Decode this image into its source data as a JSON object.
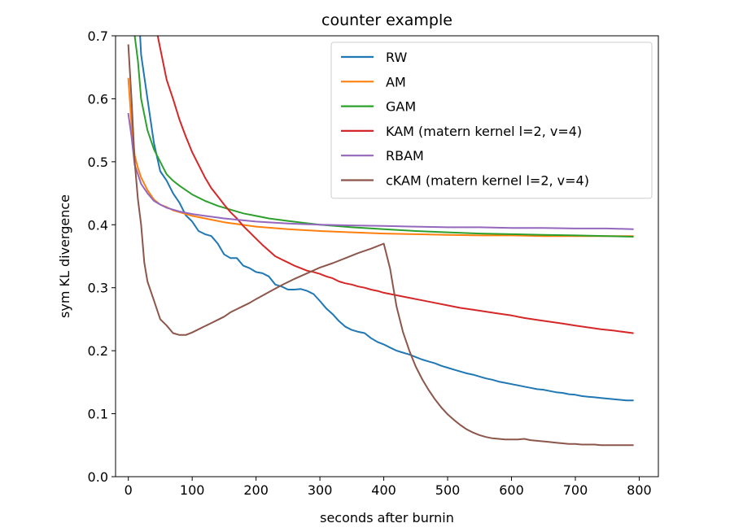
{
  "chart_data": {
    "type": "line",
    "title": "counter example",
    "xlabel": "seconds after burnin",
    "ylabel": "sym KL divergence",
    "xlim": [
      -20,
      830
    ],
    "ylim": [
      0.0,
      0.7
    ],
    "xticks": [
      0,
      100,
      200,
      300,
      400,
      500,
      600,
      700,
      800
    ],
    "yticks": [
      0.0,
      0.1,
      0.2,
      0.3,
      0.4,
      0.5,
      0.6,
      0.7
    ],
    "grid": false,
    "legend_position": "top-right",
    "series": [
      {
        "name": "RW",
        "color": "#1f77b4",
        "points": [
          [
            10,
            0.86
          ],
          [
            20,
            0.67
          ],
          [
            30,
            0.6
          ],
          [
            40,
            0.53
          ],
          [
            50,
            0.485
          ],
          [
            60,
            0.47
          ],
          [
            70,
            0.45
          ],
          [
            80,
            0.435
          ],
          [
            90,
            0.415
          ],
          [
            100,
            0.405
          ],
          [
            110,
            0.39
          ],
          [
            120,
            0.385
          ],
          [
            130,
            0.382
          ],
          [
            140,
            0.37
          ],
          [
            150,
            0.353
          ],
          [
            160,
            0.347
          ],
          [
            170,
            0.347
          ],
          [
            180,
            0.335
          ],
          [
            190,
            0.331
          ],
          [
            200,
            0.325
          ],
          [
            210,
            0.323
          ],
          [
            220,
            0.318
          ],
          [
            230,
            0.305
          ],
          [
            240,
            0.302
          ],
          [
            250,
            0.297
          ],
          [
            260,
            0.297
          ],
          [
            270,
            0.298
          ],
          [
            280,
            0.295
          ],
          [
            290,
            0.29
          ],
          [
            300,
            0.279
          ],
          [
            310,
            0.267
          ],
          [
            320,
            0.258
          ],
          [
            330,
            0.247
          ],
          [
            340,
            0.238
          ],
          [
            350,
            0.233
          ],
          [
            360,
            0.23
          ],
          [
            370,
            0.228
          ],
          [
            380,
            0.22
          ],
          [
            390,
            0.214
          ],
          [
            400,
            0.21
          ],
          [
            410,
            0.205
          ],
          [
            420,
            0.2
          ],
          [
            430,
            0.197
          ],
          [
            440,
            0.194
          ],
          [
            450,
            0.19
          ],
          [
            460,
            0.186
          ],
          [
            470,
            0.183
          ],
          [
            480,
            0.18
          ],
          [
            490,
            0.176
          ],
          [
            500,
            0.173
          ],
          [
            510,
            0.17
          ],
          [
            520,
            0.167
          ],
          [
            530,
            0.164
          ],
          [
            540,
            0.162
          ],
          [
            550,
            0.159
          ],
          [
            560,
            0.156
          ],
          [
            570,
            0.154
          ],
          [
            580,
            0.151
          ],
          [
            590,
            0.149
          ],
          [
            600,
            0.147
          ],
          [
            610,
            0.145
          ],
          [
            620,
            0.143
          ],
          [
            630,
            0.141
          ],
          [
            640,
            0.139
          ],
          [
            650,
            0.138
          ],
          [
            660,
            0.136
          ],
          [
            670,
            0.134
          ],
          [
            680,
            0.133
          ],
          [
            690,
            0.131
          ],
          [
            700,
            0.13
          ],
          [
            710,
            0.128
          ],
          [
            720,
            0.127
          ],
          [
            730,
            0.126
          ],
          [
            740,
            0.125
          ],
          [
            750,
            0.124
          ],
          [
            760,
            0.123
          ],
          [
            770,
            0.122
          ],
          [
            780,
            0.121
          ],
          [
            790,
            0.121
          ]
        ]
      },
      {
        "name": "AM",
        "color": "#ff7f0e",
        "points": [
          [
            0,
            0.632
          ],
          [
            5,
            0.56
          ],
          [
            10,
            0.51
          ],
          [
            15,
            0.49
          ],
          [
            20,
            0.475
          ],
          [
            30,
            0.455
          ],
          [
            40,
            0.44
          ],
          [
            50,
            0.432
          ],
          [
            60,
            0.428
          ],
          [
            70,
            0.423
          ],
          [
            80,
            0.42
          ],
          [
            100,
            0.414
          ],
          [
            120,
            0.41
          ],
          [
            150,
            0.404
          ],
          [
            200,
            0.397
          ],
          [
            250,
            0.393
          ],
          [
            300,
            0.39
          ],
          [
            350,
            0.388
          ],
          [
            400,
            0.386
          ],
          [
            450,
            0.385
          ],
          [
            500,
            0.384
          ],
          [
            550,
            0.383
          ],
          [
            600,
            0.383
          ],
          [
            650,
            0.382
          ],
          [
            700,
            0.382
          ],
          [
            750,
            0.382
          ],
          [
            790,
            0.382
          ]
        ]
      },
      {
        "name": "GAM",
        "color": "#2ca02c",
        "points": [
          [
            5,
            0.73
          ],
          [
            10,
            0.7
          ],
          [
            15,
            0.66
          ],
          [
            20,
            0.6
          ],
          [
            30,
            0.55
          ],
          [
            40,
            0.52
          ],
          [
            50,
            0.5
          ],
          [
            60,
            0.48
          ],
          [
            70,
            0.47
          ],
          [
            80,
            0.462
          ],
          [
            90,
            0.455
          ],
          [
            100,
            0.448
          ],
          [
            120,
            0.438
          ],
          [
            140,
            0.43
          ],
          [
            160,
            0.424
          ],
          [
            180,
            0.418
          ],
          [
            200,
            0.414
          ],
          [
            220,
            0.41
          ],
          [
            250,
            0.406
          ],
          [
            300,
            0.4
          ],
          [
            350,
            0.396
          ],
          [
            400,
            0.393
          ],
          [
            450,
            0.39
          ],
          [
            500,
            0.388
          ],
          [
            550,
            0.386
          ],
          [
            600,
            0.385
          ],
          [
            650,
            0.384
          ],
          [
            700,
            0.383
          ],
          [
            750,
            0.382
          ],
          [
            790,
            0.381
          ]
        ]
      },
      {
        "name": "KAM (matern kernel l=2, v=4)",
        "color": "#d62728",
        "points": [
          [
            45,
            0.705
          ],
          [
            50,
            0.68
          ],
          [
            60,
            0.63
          ],
          [
            70,
            0.6
          ],
          [
            80,
            0.567
          ],
          [
            90,
            0.54
          ],
          [
            100,
            0.515
          ],
          [
            110,
            0.495
          ],
          [
            120,
            0.475
          ],
          [
            130,
            0.458
          ],
          [
            140,
            0.445
          ],
          [
            150,
            0.432
          ],
          [
            160,
            0.42
          ],
          [
            170,
            0.41
          ],
          [
            180,
            0.398
          ],
          [
            190,
            0.388
          ],
          [
            200,
            0.378
          ],
          [
            210,
            0.368
          ],
          [
            220,
            0.359
          ],
          [
            230,
            0.35
          ],
          [
            240,
            0.345
          ],
          [
            250,
            0.34
          ],
          [
            260,
            0.335
          ],
          [
            270,
            0.331
          ],
          [
            280,
            0.327
          ],
          [
            290,
            0.325
          ],
          [
            300,
            0.322
          ],
          [
            310,
            0.318
          ],
          [
            320,
            0.315
          ],
          [
            330,
            0.31
          ],
          [
            340,
            0.307
          ],
          [
            350,
            0.305
          ],
          [
            360,
            0.302
          ],
          [
            370,
            0.3
          ],
          [
            380,
            0.297
          ],
          [
            390,
            0.295
          ],
          [
            400,
            0.292
          ],
          [
            420,
            0.288
          ],
          [
            440,
            0.284
          ],
          [
            460,
            0.28
          ],
          [
            480,
            0.276
          ],
          [
            500,
            0.272
          ],
          [
            520,
            0.268
          ],
          [
            540,
            0.265
          ],
          [
            560,
            0.262
          ],
          [
            580,
            0.259
          ],
          [
            600,
            0.256
          ],
          [
            620,
            0.252
          ],
          [
            640,
            0.249
          ],
          [
            660,
            0.246
          ],
          [
            680,
            0.243
          ],
          [
            700,
            0.24
          ],
          [
            720,
            0.237
          ],
          [
            740,
            0.234
          ],
          [
            760,
            0.232
          ],
          [
            790,
            0.228
          ]
        ]
      },
      {
        "name": "RBAM",
        "color": "#9467bd",
        "points": [
          [
            0,
            0.576
          ],
          [
            5,
            0.54
          ],
          [
            10,
            0.495
          ],
          [
            15,
            0.48
          ],
          [
            20,
            0.465
          ],
          [
            30,
            0.45
          ],
          [
            40,
            0.438
          ],
          [
            50,
            0.432
          ],
          [
            60,
            0.427
          ],
          [
            70,
            0.424
          ],
          [
            80,
            0.421
          ],
          [
            100,
            0.417
          ],
          [
            120,
            0.414
          ],
          [
            150,
            0.41
          ],
          [
            200,
            0.405
          ],
          [
            250,
            0.402
          ],
          [
            300,
            0.4
          ],
          [
            350,
            0.399
          ],
          [
            400,
            0.398
          ],
          [
            450,
            0.397
          ],
          [
            500,
            0.396
          ],
          [
            550,
            0.396
          ],
          [
            600,
            0.395
          ],
          [
            650,
            0.395
          ],
          [
            700,
            0.394
          ],
          [
            750,
            0.394
          ],
          [
            790,
            0.393
          ]
        ]
      },
      {
        "name": "cKAM (matern kernel l=2, v=4)",
        "color": "#8c564b",
        "points": [
          [
            0,
            0.685
          ],
          [
            5,
            0.6
          ],
          [
            10,
            0.5
          ],
          [
            15,
            0.44
          ],
          [
            20,
            0.4
          ],
          [
            25,
            0.34
          ],
          [
            30,
            0.31
          ],
          [
            40,
            0.28
          ],
          [
            50,
            0.25
          ],
          [
            60,
            0.24
          ],
          [
            70,
            0.228
          ],
          [
            80,
            0.225
          ],
          [
            90,
            0.225
          ],
          [
            100,
            0.229
          ],
          [
            110,
            0.234
          ],
          [
            120,
            0.239
          ],
          [
            130,
            0.244
          ],
          [
            140,
            0.249
          ],
          [
            150,
            0.254
          ],
          [
            160,
            0.261
          ],
          [
            170,
            0.266
          ],
          [
            180,
            0.271
          ],
          [
            190,
            0.276
          ],
          [
            200,
            0.282
          ],
          [
            220,
            0.293
          ],
          [
            240,
            0.304
          ],
          [
            260,
            0.314
          ],
          [
            280,
            0.323
          ],
          [
            300,
            0.332
          ],
          [
            320,
            0.339
          ],
          [
            340,
            0.347
          ],
          [
            360,
            0.355
          ],
          [
            380,
            0.362
          ],
          [
            400,
            0.37
          ],
          [
            405,
            0.35
          ],
          [
            410,
            0.33
          ],
          [
            415,
            0.3
          ],
          [
            420,
            0.27
          ],
          [
            430,
            0.23
          ],
          [
            440,
            0.2
          ],
          [
            450,
            0.175
          ],
          [
            460,
            0.155
          ],
          [
            470,
            0.138
          ],
          [
            480,
            0.123
          ],
          [
            490,
            0.11
          ],
          [
            500,
            0.099
          ],
          [
            510,
            0.09
          ],
          [
            520,
            0.082
          ],
          [
            530,
            0.075
          ],
          [
            540,
            0.07
          ],
          [
            550,
            0.066
          ],
          [
            560,
            0.063
          ],
          [
            570,
            0.061
          ],
          [
            580,
            0.06
          ],
          [
            590,
            0.059
          ],
          [
            600,
            0.059
          ],
          [
            610,
            0.059
          ],
          [
            620,
            0.06
          ],
          [
            630,
            0.058
          ],
          [
            640,
            0.057
          ],
          [
            650,
            0.056
          ],
          [
            660,
            0.055
          ],
          [
            670,
            0.054
          ],
          [
            680,
            0.053
          ],
          [
            690,
            0.052
          ],
          [
            700,
            0.052
          ],
          [
            710,
            0.051
          ],
          [
            720,
            0.051
          ],
          [
            730,
            0.051
          ],
          [
            740,
            0.05
          ],
          [
            750,
            0.05
          ],
          [
            760,
            0.05
          ],
          [
            770,
            0.05
          ],
          [
            790,
            0.05
          ]
        ]
      }
    ]
  }
}
